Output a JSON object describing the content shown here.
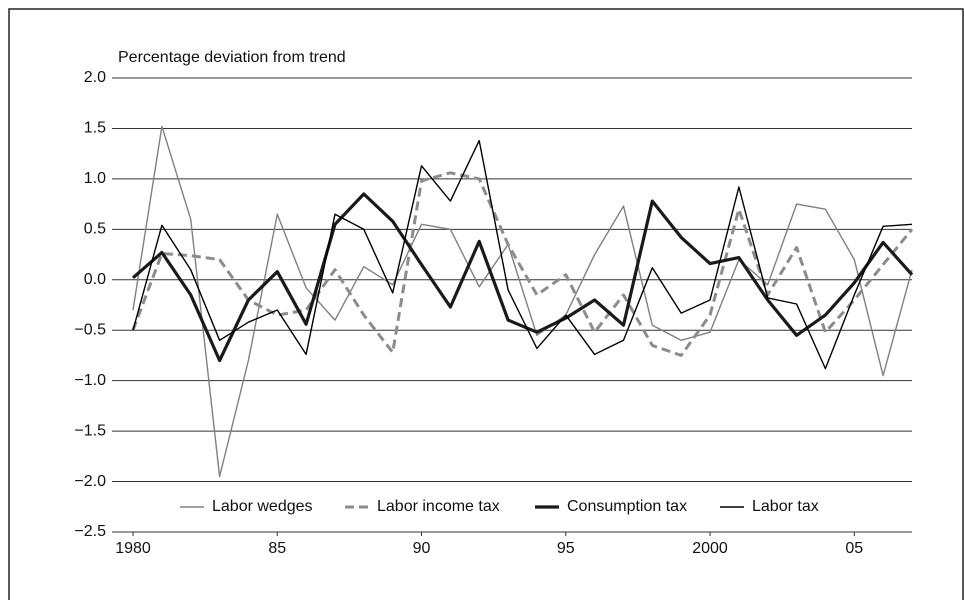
{
  "chart_data": {
    "type": "line",
    "y_label": "Percentage deviation from trend",
    "x": [
      1980,
      1981,
      1982,
      1983,
      1984,
      1985,
      1986,
      1987,
      1988,
      1989,
      1990,
      1991,
      1992,
      1993,
      1994,
      1995,
      1996,
      1997,
      1998,
      1999,
      2000,
      2001,
      2002,
      2003,
      2004,
      2005,
      2006,
      2007
    ],
    "xlim": [
      1980,
      2007
    ],
    "xticks": [
      1980,
      {
        "value": 1985,
        "label": "85"
      },
      {
        "value": 1990,
        "label": "90"
      },
      {
        "value": 1995,
        "label": "95"
      },
      2000,
      {
        "value": 2005,
        "label": "05"
      }
    ],
    "ylim": [
      -2.5,
      2.0
    ],
    "yticks": [
      {
        "value": -2.5,
        "label": "−2.5"
      },
      {
        "value": -2.0,
        "label": "−2.0"
      },
      {
        "value": -1.5,
        "label": "−1.5"
      },
      {
        "value": -1.0,
        "label": "−1.0"
      },
      {
        "value": -0.5,
        "label": "−0.5"
      },
      {
        "value": 0.0,
        "label": "0.0"
      },
      {
        "value": 0.5,
        "label": "0.5"
      },
      {
        "value": 1.0,
        "label": "1.0"
      },
      {
        "value": 1.5,
        "label": "1.5"
      },
      {
        "value": 2.0,
        "label": "2.0"
      }
    ],
    "grid": true,
    "legend": "bottom",
    "series": [
      {
        "name": "Labor wedges",
        "color": "#808080",
        "width": 1.4,
        "dashed": false,
        "values": [
          -0.3,
          1.52,
          0.6,
          -1.95,
          -0.8,
          0.65,
          -0.08,
          -0.4,
          0.13,
          -0.05,
          0.55,
          0.5,
          -0.07,
          0.35,
          -0.55,
          -0.35,
          0.25,
          0.73,
          -0.45,
          -0.6,
          -0.52,
          0.2,
          -0.05,
          0.75,
          0.7,
          0.2,
          -0.95,
          0.1
        ]
      },
      {
        "name": "Labor income tax",
        "color": "#8c8c8c",
        "width": 3,
        "dashed": true,
        "values": [
          -0.5,
          0.26,
          0.24,
          0.2,
          -0.2,
          -0.35,
          -0.3,
          0.1,
          -0.35,
          -0.72,
          0.98,
          1.06,
          1.0,
          0.35,
          -0.15,
          0.05,
          -0.52,
          -0.15,
          -0.65,
          -0.75,
          -0.35,
          0.7,
          -0.15,
          0.32,
          -0.52,
          -0.2,
          0.15,
          0.5
        ]
      },
      {
        "name": "Consumption tax",
        "color": "#1a1a1a",
        "width": 3.2,
        "dashed": false,
        "values": [
          0.02,
          0.27,
          -0.15,
          -0.8,
          -0.2,
          0.08,
          -0.44,
          0.55,
          0.85,
          0.58,
          0.15,
          -0.27,
          0.38,
          -0.4,
          -0.52,
          -0.38,
          -0.2,
          -0.45,
          0.78,
          0.42,
          0.16,
          0.22,
          -0.2,
          -0.55,
          -0.35,
          -0.03,
          0.37,
          0.05
        ]
      },
      {
        "name": "Labor tax",
        "color": "#000000",
        "width": 1.4,
        "dashed": false,
        "values": [
          -0.5,
          0.54,
          0.1,
          -0.6,
          -0.42,
          -0.3,
          -0.74,
          0.65,
          0.5,
          -0.13,
          1.13,
          0.78,
          1.38,
          -0.1,
          -0.68,
          -0.35,
          -0.74,
          -0.6,
          0.12,
          -0.33,
          -0.2,
          0.92,
          -0.18,
          -0.24,
          -0.88,
          -0.15,
          0.53,
          0.55
        ]
      }
    ]
  }
}
